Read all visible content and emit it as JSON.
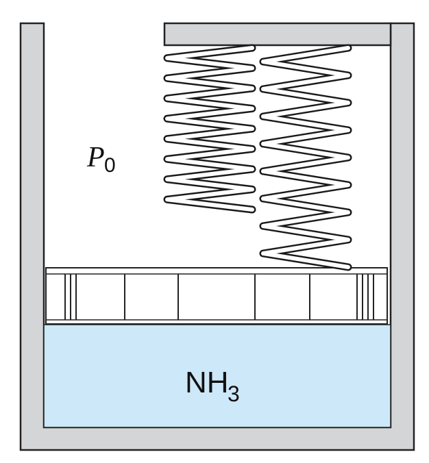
{
  "diagram": {
    "pressure_label": {
      "symbol": "P",
      "subscript": "0"
    },
    "liquid_label": {
      "main": "NH",
      "subscript": "3"
    },
    "colors": {
      "wall": "#d4d5d7",
      "liquid": "#cde8f8",
      "outline": "#222222",
      "piston": "#ffffff"
    }
  }
}
